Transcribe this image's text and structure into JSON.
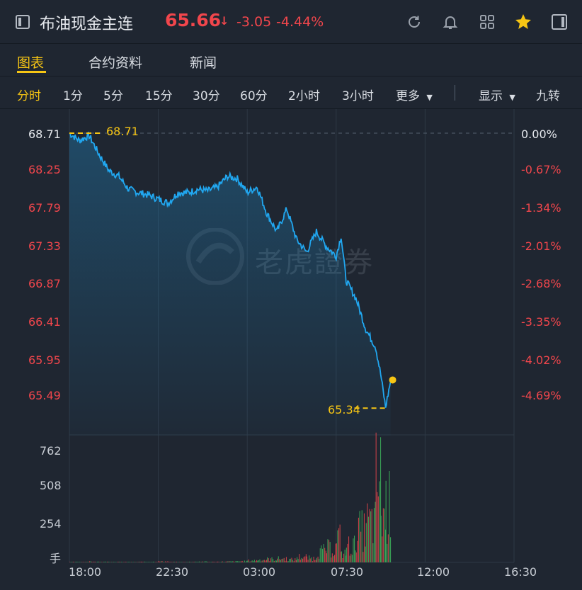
{
  "header": {
    "title": "布油现金主连",
    "price": "65.66",
    "arrow": "↓",
    "change": "-3.05",
    "change_pct": "-4.44%",
    "icons": [
      "refresh-icon",
      "bell-icon",
      "grid-icon",
      "star-icon",
      "panel-icon"
    ],
    "colors": {
      "down": "#f1464c",
      "accent": "#f6c514",
      "line": "#21a7f0"
    }
  },
  "tabs": [
    {
      "label": "图表",
      "active": true
    },
    {
      "label": "合约资料",
      "active": false
    },
    {
      "label": "新闻",
      "active": false
    }
  ],
  "periods": [
    "分时",
    "1分",
    "5分",
    "15分",
    "30分",
    "60分",
    "2小时",
    "3小时",
    "更多"
  ],
  "active_period": "分时",
  "options": {
    "display": "显示",
    "nine": "九转"
  },
  "watermark": "老虎證券",
  "chart_data": {
    "type": "line",
    "title": "",
    "x_ticks": [
      "18:00",
      "22:30",
      "03:00",
      "07:30",
      "12:00",
      "16:30"
    ],
    "y_left_ticks": [
      "68.71",
      "68.25",
      "67.79",
      "67.33",
      "66.87",
      "66.41",
      "65.95",
      "65.49"
    ],
    "y_right_ticks": [
      "0.00%",
      "-0.67%",
      "-1.34%",
      "-2.01%",
      "-2.68%",
      "-3.35%",
      "-4.02%",
      "-4.69%"
    ],
    "ylim": [
      65.49,
      68.71
    ],
    "high_marker": "68.71",
    "low_marker": "65.34",
    "last_price": 65.66,
    "x": [
      "18:00",
      "18:30",
      "19:00",
      "19:30",
      "20:00",
      "20:30",
      "21:00",
      "21:30",
      "22:00",
      "22:30",
      "23:00",
      "23:30",
      "00:00",
      "00:30",
      "01:00",
      "01:30",
      "02:00",
      "02:30",
      "03:00",
      "03:30",
      "04:00",
      "04:30",
      "05:00",
      "05:30",
      "06:00",
      "06:30",
      "07:00",
      "07:30",
      "07:45",
      "08:00",
      "08:30",
      "09:00",
      "09:30",
      "09:45",
      "10:00",
      "10:15"
    ],
    "values": [
      68.71,
      68.62,
      68.68,
      68.45,
      68.25,
      68.18,
      68.02,
      67.98,
      67.95,
      67.9,
      67.85,
      67.98,
      67.98,
      68.02,
      68.0,
      68.05,
      68.18,
      68.15,
      67.98,
      68.05,
      67.72,
      67.5,
      67.78,
      67.4,
      67.25,
      67.5,
      67.32,
      67.2,
      67.45,
      66.9,
      66.68,
      66.3,
      66.08,
      65.75,
      65.34,
      65.66
    ],
    "volume_ticks": [
      "762",
      "508",
      "254",
      "手"
    ],
    "volume": [
      5,
      3,
      8,
      6,
      5,
      4,
      3,
      5,
      6,
      10,
      4,
      3,
      6,
      8,
      5,
      7,
      9,
      12,
      20,
      28,
      35,
      40,
      30,
      60,
      45,
      120,
      150,
      260,
      90,
      180,
      340,
      420,
      880,
      520,
      600,
      180
    ],
    "grid": true
  }
}
